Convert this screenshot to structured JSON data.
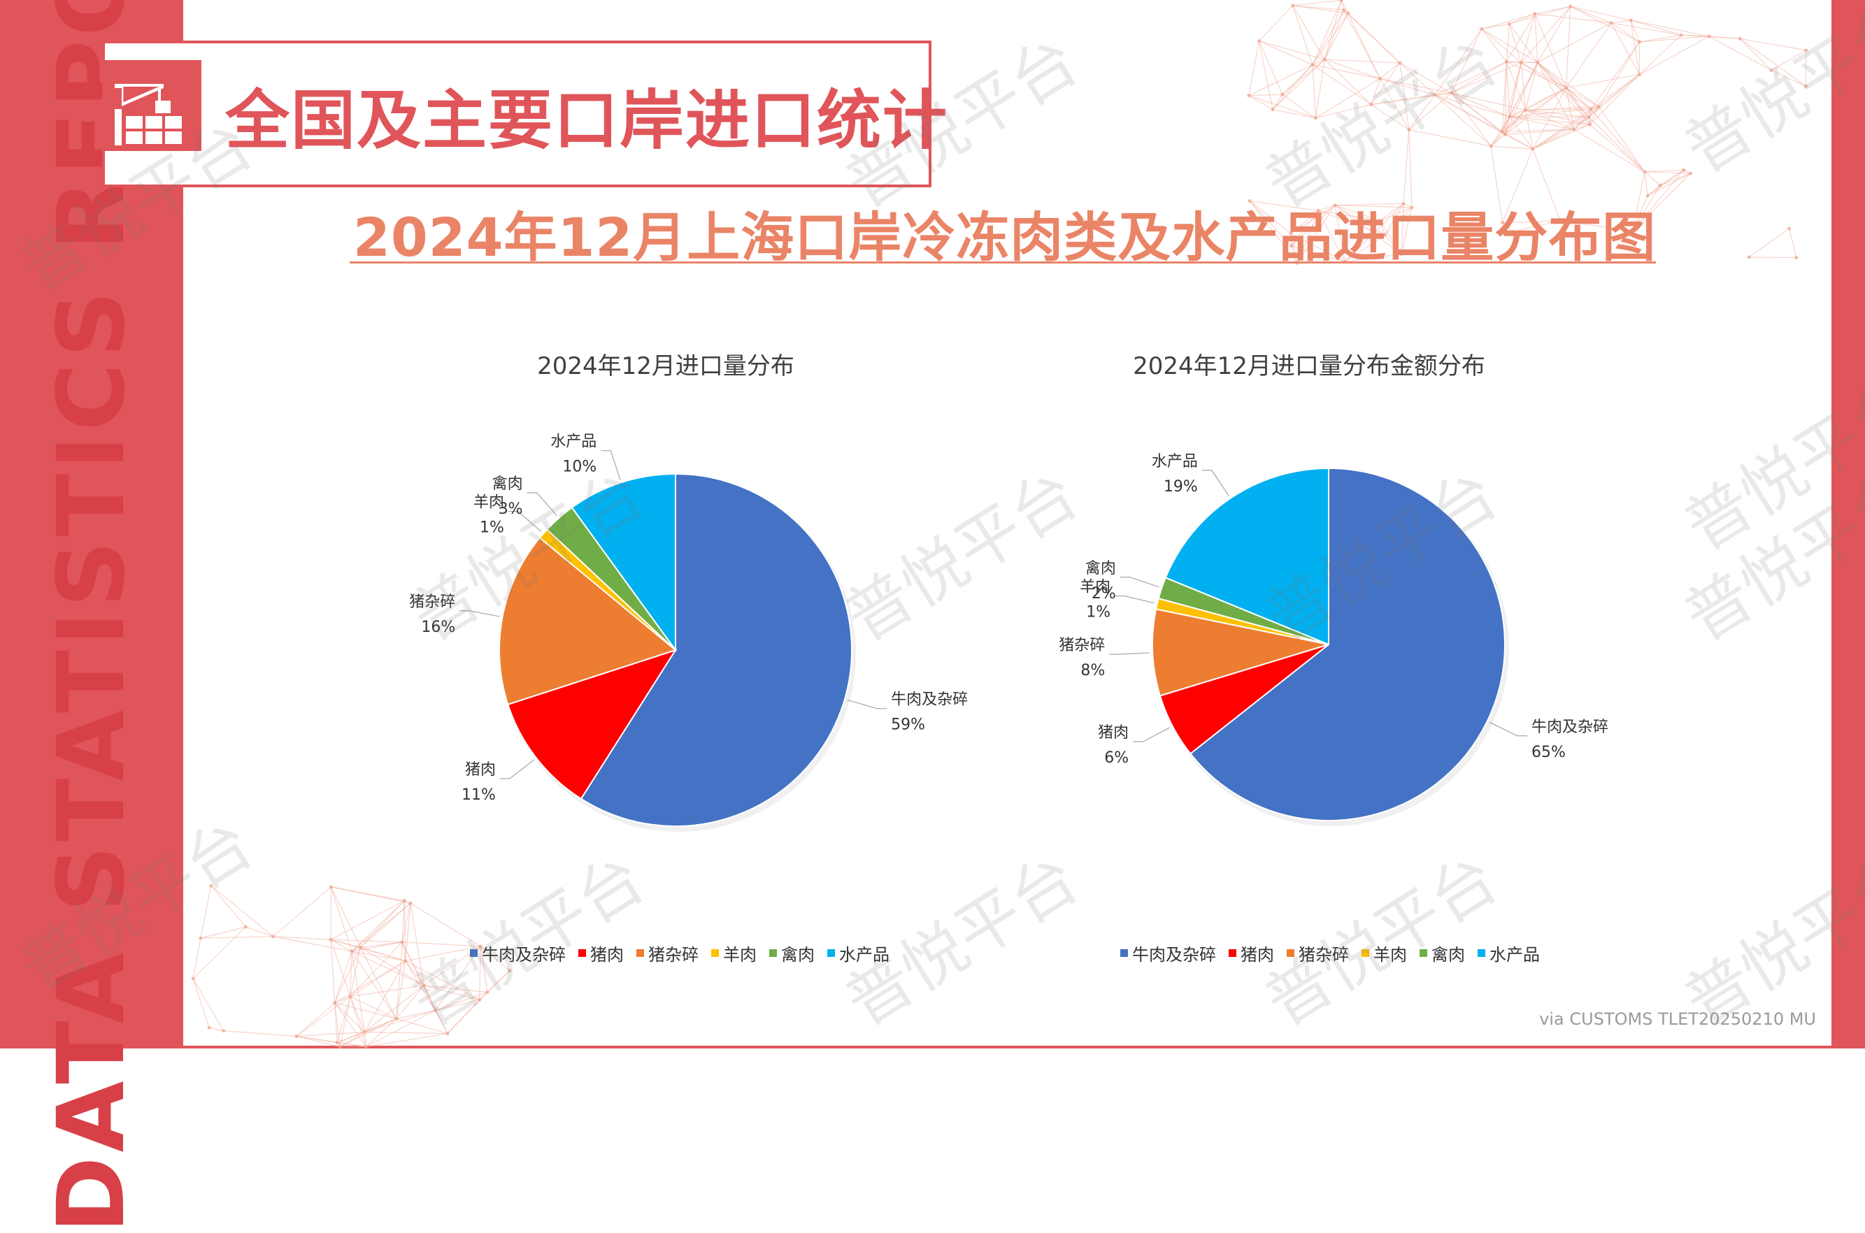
{
  "band_text": "DATA STATISTICS REPORT",
  "header": {
    "title": "全国及主要口岸进口统计",
    "icon": "crane-container-icon"
  },
  "subtitle": "2024年12月上海口岸冷冻肉类及水产品进口量分布图",
  "source_note": "via CUSTOMS TLET20250210 MU",
  "watermark": "普悦平台",
  "colors": {
    "accent": "#e0555a",
    "subtitle": "#ea8466",
    "series": [
      "#4472c4",
      "#ff0000",
      "#ed7d31",
      "#ffc000",
      "#70ad47",
      "#00b0f0"
    ]
  },
  "chart_data": [
    {
      "type": "pie",
      "title": "2024年12月进口量分布",
      "categories": [
        "牛肉及杂碎",
        "猪肉",
        "猪杂碎",
        "羊肉",
        "禽肉",
        "水产品"
      ],
      "values": [
        59,
        11,
        16,
        1,
        3,
        10
      ],
      "labels": [
        "59%",
        "11%",
        "16%",
        "1%",
        "3%",
        "10%"
      ],
      "legend": "bottom"
    },
    {
      "type": "pie",
      "title": "2024年12月进口量分布金额分布",
      "categories": [
        "牛肉及杂碎",
        "猪肉",
        "猪杂碎",
        "羊肉",
        "禽肉",
        "水产品"
      ],
      "values": [
        65,
        6,
        8,
        1,
        2,
        19
      ],
      "labels": [
        "65%",
        "6%",
        "8%",
        "1%",
        "2%",
        "19%"
      ],
      "legend": "bottom"
    }
  ]
}
